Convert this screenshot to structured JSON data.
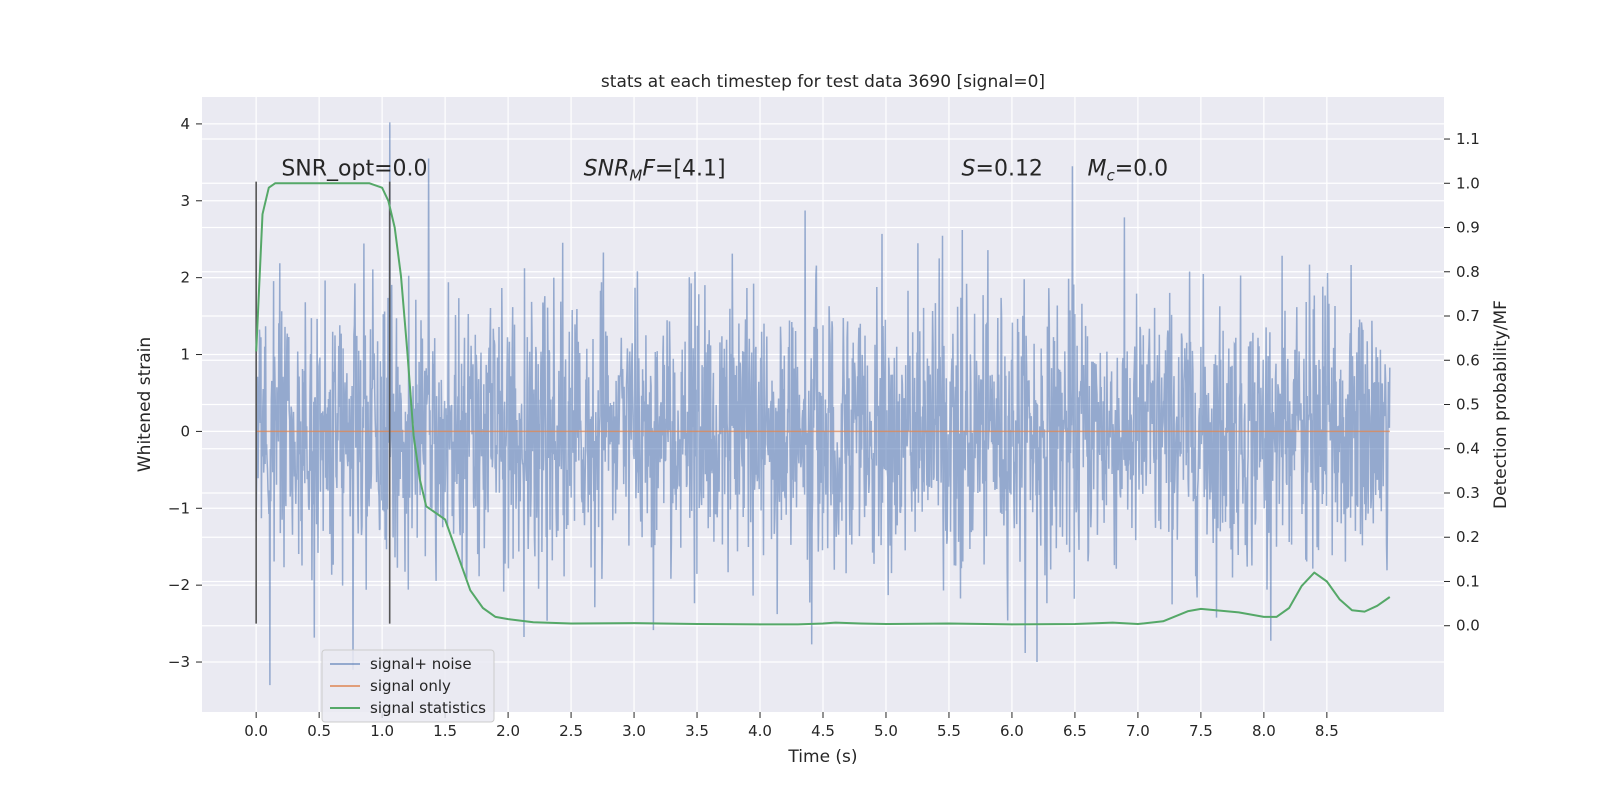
{
  "chart_data": {
    "type": "line",
    "title": "stats at each timestep for test data 3690 [signal=0]",
    "xlabel": "Time (s)",
    "ylabel": "Whitened strain",
    "y2label": "Detection probability/MF",
    "xlim": [
      -0.43,
      9.43
    ],
    "ylim": [
      -3.65,
      4.35
    ],
    "y2lim": [
      -0.195,
      1.195
    ],
    "xticks": [
      0.0,
      0.5,
      1.0,
      1.5,
      2.0,
      2.5,
      3.0,
      3.5,
      4.0,
      4.5,
      5.0,
      5.5,
      6.0,
      6.5,
      7.0,
      7.5,
      8.0,
      8.5
    ],
    "xtick_labels": [
      "0.0",
      "0.5",
      "1.0",
      "1.5",
      "2.0",
      "2.5",
      "3.0",
      "3.5",
      "4.0",
      "4.5",
      "5.0",
      "5.5",
      "6.0",
      "6.5",
      "7.0",
      "7.5",
      "8.0",
      "8.5"
    ],
    "yticks": [
      -3,
      -2,
      -1,
      0,
      1,
      2,
      3,
      4
    ],
    "ytick_labels": [
      "−3",
      "−2",
      "−1",
      "0",
      "1",
      "2",
      "3",
      "4"
    ],
    "y2ticks": [
      0.0,
      0.1,
      0.2,
      0.3,
      0.4,
      0.5,
      0.6,
      0.7,
      0.8,
      0.9,
      1.0,
      1.1
    ],
    "y2tick_labels": [
      "0.0",
      "0.1",
      "0.2",
      "0.3",
      "0.4",
      "0.5",
      "0.6",
      "0.7",
      "0.8",
      "0.9",
      "1.0",
      "1.1"
    ],
    "grid": true,
    "legend_position": "lower-left",
    "annotations": [
      {
        "text": "SNR_opt=0.0",
        "x": 0.2,
        "y": 3.33
      },
      {
        "text": "SNR_MF=[4.1]",
        "x": 2.6,
        "y": 3.33
      },
      {
        "text": "S=0.12",
        "x": 5.6,
        "y": 3.33
      },
      {
        "text": "M_c=0.0",
        "x": 6.6,
        "y": 3.33
      }
    ],
    "vertical_lines": [
      {
        "x": 0.0,
        "ymin": -2.5,
        "ymax": 3.25
      },
      {
        "x": 1.06,
        "ymin": -2.5,
        "ymax": 3.25
      }
    ],
    "series": [
      {
        "name": "signal+ noise",
        "color": "#4c72b0",
        "axis": "left",
        "x_range": [
          0.0,
          9.0
        ],
        "envelope": {
          "typical_abs": 1.3,
          "max": 4.02,
          "min": -3.3
        },
        "notable_peaks": [
          {
            "x": 1.06,
            "y": 4.02
          },
          {
            "x": 1.37,
            "y": 3.55
          },
          {
            "x": 6.48,
            "y": 3.45
          },
          {
            "x": 0.11,
            "y": -3.3
          },
          {
            "x": 0.77,
            "y": -3.1
          },
          {
            "x": 6.2,
            "y": -3.0
          }
        ]
      },
      {
        "name": "signal only",
        "color": "#dd8452",
        "axis": "left",
        "x": [
          0.0,
          9.0
        ],
        "y": [
          0.0,
          0.0
        ]
      },
      {
        "name": "signal statistics",
        "color": "#55a868",
        "axis": "right",
        "x": [
          0.0,
          0.05,
          0.1,
          0.15,
          0.2,
          0.3,
          0.5,
          0.7,
          0.9,
          1.0,
          1.05,
          1.1,
          1.15,
          1.2,
          1.25,
          1.3,
          1.35,
          1.4,
          1.5,
          1.6,
          1.7,
          1.8,
          1.9,
          2.0,
          2.2,
          2.5,
          3.0,
          3.5,
          4.0,
          4.3,
          4.5,
          4.6,
          4.8,
          5.0,
          5.5,
          6.0,
          6.5,
          6.8,
          7.0,
          7.2,
          7.4,
          7.5,
          7.8,
          8.0,
          8.1,
          8.2,
          8.3,
          8.4,
          8.5,
          8.6,
          8.7,
          8.8,
          8.9,
          9.0
        ],
        "y": [
          0.62,
          0.93,
          0.99,
          1.0,
          1.0,
          1.0,
          1.0,
          1.0,
          1.0,
          0.99,
          0.96,
          0.9,
          0.79,
          0.62,
          0.43,
          0.33,
          0.27,
          0.26,
          0.24,
          0.16,
          0.08,
          0.04,
          0.02,
          0.015,
          0.008,
          0.005,
          0.006,
          0.004,
          0.003,
          0.003,
          0.005,
          0.007,
          0.005,
          0.004,
          0.005,
          0.003,
          0.004,
          0.007,
          0.004,
          0.01,
          0.033,
          0.038,
          0.03,
          0.02,
          0.02,
          0.04,
          0.09,
          0.12,
          0.1,
          0.06,
          0.035,
          0.032,
          0.045,
          0.065
        ]
      }
    ]
  }
}
